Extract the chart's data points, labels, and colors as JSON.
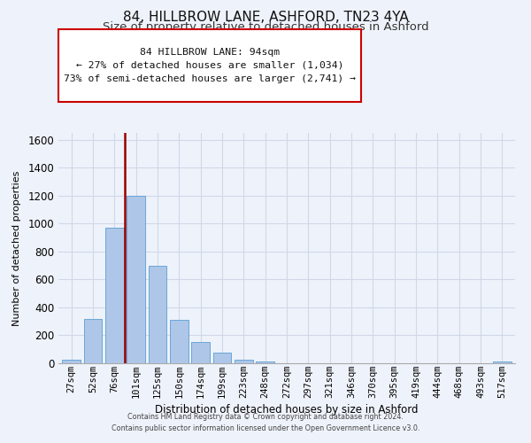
{
  "title": "84, HILLBROW LANE, ASHFORD, TN23 4YA",
  "subtitle": "Size of property relative to detached houses in Ashford",
  "xlabel": "Distribution of detached houses by size in Ashford",
  "ylabel": "Number of detached properties",
  "bar_labels": [
    "27sqm",
    "52sqm",
    "76sqm",
    "101sqm",
    "125sqm",
    "150sqm",
    "174sqm",
    "199sqm",
    "223sqm",
    "248sqm",
    "272sqm",
    "297sqm",
    "321sqm",
    "346sqm",
    "370sqm",
    "395sqm",
    "419sqm",
    "444sqm",
    "468sqm",
    "493sqm",
    "517sqm"
  ],
  "bar_values": [
    25,
    320,
    970,
    1200,
    700,
    310,
    150,
    75,
    25,
    15,
    0,
    0,
    0,
    0,
    0,
    0,
    0,
    0,
    0,
    0,
    15
  ],
  "bar_color": "#aec6e8",
  "bar_edge_color": "#5a9fd4",
  "ylim": [
    0,
    1650
  ],
  "yticks": [
    0,
    200,
    400,
    600,
    800,
    1000,
    1200,
    1400,
    1600
  ],
  "vline_color": "#990000",
  "annotation_title": "84 HILLBROW LANE: 94sqm",
  "annotation_line1": "← 27% of detached houses are smaller (1,034)",
  "annotation_line2": "73% of semi-detached houses are larger (2,741) →",
  "annotation_box_color": "#ffffff",
  "annotation_box_edge": "#cc0000",
  "footer1": "Contains HM Land Registry data © Crown copyright and database right 2024.",
  "footer2": "Contains public sector information licensed under the Open Government Licence v3.0.",
  "background_color": "#eef2fa",
  "grid_color": "#d0d8e8",
  "title_fontsize": 11,
  "subtitle_fontsize": 9.5
}
